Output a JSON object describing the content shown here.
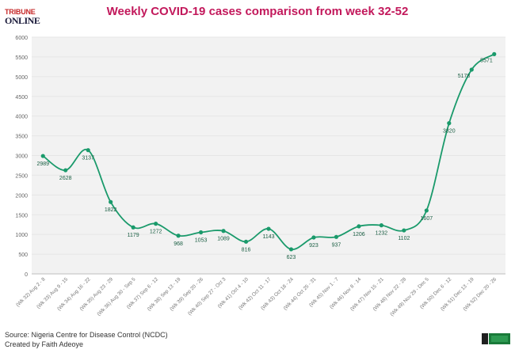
{
  "logo": {
    "line1": "TRIBUNE",
    "line2": "ONLINE"
  },
  "title": "Weekly COVID-19 cases comparison from week 32-52",
  "footer": {
    "source": "Source: Nigeria Centre for Disease Control (NCDC)",
    "credit": "Created by Faith Adeoye"
  },
  "colors": {
    "line": "#1a9a6b",
    "title": "#c2185b",
    "grid": "#e6e6e6",
    "plot_bg": "#f2f2f2"
  },
  "chart_data": {
    "type": "line",
    "title": "Weekly COVID-19 cases comparison from week 32-52",
    "xlabel": "",
    "ylabel": "",
    "ylim": [
      0,
      6000
    ],
    "yticks": [
      0,
      500,
      1000,
      1500,
      2000,
      2500,
      3000,
      3500,
      4000,
      4500,
      5000,
      5500,
      6000
    ],
    "grid": true,
    "categories": [
      "(Wk 32) Aug 2 - 8",
      "(Wk 33) Aug 9 - 15",
      "(Wk 34) Aug 16 - 22",
      "(Wk 35) Aug 23 - 29",
      "(Wk 36) Aug 30 - Sep 5",
      "(Wk 37) Sep 6 - 12",
      "(Wk 38) Sep 13 - 19",
      "(Wk 39) Sep 20 - 26",
      "(Wk 40) Sep 27 - Oct 3",
      "(Wk 41) Oct 4 - 10",
      "(Wk 42) Oct 11 - 17",
      "(Wk 43) Oct 18 - 24",
      "(Wk 44) Oct 25 - 31",
      "(Wk 45) Nov 1 - 7",
      "(Wk 46) Nov 8 - 14",
      "(Wk 47) Nov 15 - 21",
      "(Wk 48) Nov 22 - 28",
      "(Wk 49) Nov 29 - Dec 5",
      "(Wk 50) Dec 6 - 12",
      "(Wk 51) Dec 13 - 19",
      "(Wk 52) Dec 20 - 26"
    ],
    "values": [
      2989,
      2628,
      3137,
      1822,
      1179,
      1272,
      968,
      1053,
      1089,
      816,
      1143,
      623,
      923,
      937,
      1206,
      1232,
      1102,
      1607,
      3820,
      5178,
      5571
    ]
  }
}
